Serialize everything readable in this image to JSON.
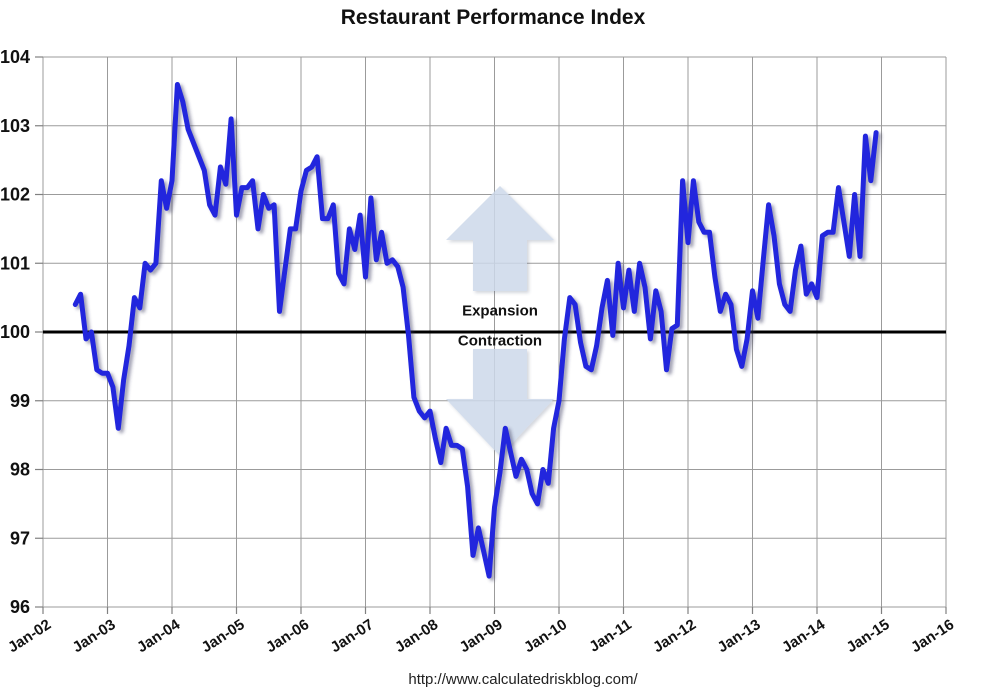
{
  "title": "Restaurant Performance Index",
  "source_url": "http://www.calculatedriskblog.com/",
  "annotations": {
    "expansion_label": "Expansion",
    "contraction_label": "Contraction",
    "baseline_value": 100
  },
  "colors": {
    "line": "#2026dd",
    "line_shadow": "#30305a",
    "baseline": "#000000",
    "grid": "#9b9b9b",
    "tick": "#808080",
    "arrow_fill": "#cdd9ea",
    "text": "#111111",
    "background": "#ffffff"
  },
  "chart_data": {
    "type": "line",
    "title": "Restaurant Performance Index",
    "xlabel": "",
    "ylabel": "",
    "ylim": [
      96,
      104
    ],
    "y_ticks": [
      96,
      97,
      98,
      99,
      100,
      101,
      102,
      103,
      104
    ],
    "x_tick_labels": [
      "Jan-02",
      "Jan-03",
      "Jan-04",
      "Jan-05",
      "Jan-06",
      "Jan-07",
      "Jan-08",
      "Jan-09",
      "Jan-10",
      "Jan-11",
      "Jan-12",
      "Jan-13",
      "Jan-14",
      "Jan-15",
      "Jan-16"
    ],
    "grid": true,
    "legend_position": "none",
    "baseline": 100,
    "series": [
      {
        "name": "Restaurant Performance Index",
        "start_month": "2002-07",
        "frequency": "monthly",
        "monthly_values": [
          100.4,
          100.55,
          99.9,
          100.0,
          99.45,
          99.4,
          99.4,
          99.2,
          98.6,
          99.3,
          99.8,
          100.5,
          100.35,
          101.0,
          100.9,
          101.0,
          102.2,
          101.8,
          102.2,
          103.6,
          103.35,
          102.95,
          102.75,
          102.55,
          102.35,
          101.85,
          101.7,
          102.4,
          102.15,
          103.1,
          101.7,
          102.1,
          102.1,
          102.2,
          101.5,
          102.0,
          101.8,
          101.85,
          100.3,
          100.9,
          101.5,
          101.5,
          102.05,
          102.35,
          102.4,
          102.55,
          101.65,
          101.65,
          101.85,
          100.85,
          100.7,
          101.5,
          101.2,
          101.7,
          100.8,
          101.95,
          101.05,
          101.45,
          101.0,
          101.05,
          100.95,
          100.65,
          99.95,
          99.05,
          98.85,
          98.75,
          98.85,
          98.45,
          98.1,
          98.6,
          98.35,
          98.35,
          98.3,
          97.75,
          96.75,
          97.15,
          96.8,
          96.45,
          97.45,
          97.95,
          98.6,
          98.25,
          97.9,
          98.15,
          98.0,
          97.65,
          97.5,
          98.0,
          97.8,
          98.6,
          99.0,
          99.9,
          100.5,
          100.4,
          99.85,
          99.5,
          99.45,
          99.8,
          100.35,
          100.75,
          99.95,
          101.0,
          100.35,
          100.9,
          100.3,
          101.0,
          100.65,
          99.9,
          100.6,
          100.3,
          99.45,
          100.05,
          100.1,
          102.2,
          101.3,
          102.2,
          101.6,
          101.45,
          101.45,
          100.8,
          100.3,
          100.55,
          100.4,
          99.75,
          99.5,
          99.9,
          100.6,
          100.2,
          101.05,
          101.85,
          101.4,
          100.7,
          100.4,
          100.3,
          100.9,
          101.25,
          100.55,
          100.7,
          100.5,
          101.4,
          101.45,
          101.45,
          102.1,
          101.6,
          101.1,
          102.0,
          101.1,
          102.85,
          102.2,
          102.9
        ]
      }
    ]
  }
}
